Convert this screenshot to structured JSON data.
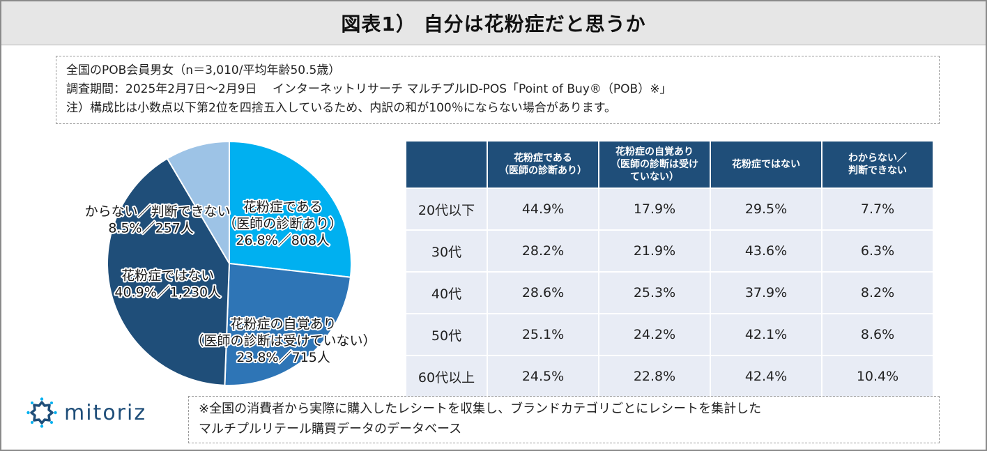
{
  "title": "図表1） 自分は花粉症だと思うか",
  "notes": [
    "全国のPOB会員男女（n＝3,010/平均年齢50.5歳）",
    "調査期間：2025年2月7日～2月9日　 インターネットリサーチ マルチプルID-POS「Point of Buy®（POB）※」",
    "注）構成比は小数点以下第2位を四捨五入しているため、内訳の和が100％にならない場合があります。"
  ],
  "chart_data": [
    {
      "type": "pie",
      "slices": [
        {
          "label_lines": [
            "花粉症である",
            "（医師の診断あり）",
            "26.8%／808人"
          ],
          "value": 26.8,
          "count": 808,
          "color": "#00b0f0"
        },
        {
          "label_lines": [
            "花粉症の自覚あり",
            "（医師の診断は受けていない）",
            "23.8%／715人"
          ],
          "value": 23.8,
          "count": 715,
          "color": "#2e75b6"
        },
        {
          "label_lines": [
            "花粉症ではない",
            "40.9%／1,230人"
          ],
          "value": 40.9,
          "count": 1230,
          "color": "#1f4e79"
        },
        {
          "label_lines": [
            "わからない／判断できない",
            "8.5%／257人"
          ],
          "value": 8.5,
          "count": 257,
          "color": "#9dc3e6"
        }
      ]
    },
    {
      "type": "table",
      "columns": [
        {
          "line1": "花粉症である",
          "line2": "（医師の診断あり）"
        },
        {
          "line1": "花粉症の自覚あり",
          "line2": "（医師の診断は受け",
          "line3": "ていない）"
        },
        {
          "line1": "花粉症ではない"
        },
        {
          "line1": "わからない／",
          "line2": "判断できない"
        }
      ],
      "rows": [
        {
          "label": "20代以下",
          "values": [
            "44.9%",
            "17.9%",
            "29.5%",
            "7.7%"
          ]
        },
        {
          "label": "30代",
          "values": [
            "28.2%",
            "21.9%",
            "43.6%",
            "6.3%"
          ]
        },
        {
          "label": "40代",
          "values": [
            "28.6%",
            "25.3%",
            "37.9%",
            "8.2%"
          ]
        },
        {
          "label": "50代",
          "values": [
            "25.1%",
            "24.2%",
            "42.1%",
            "8.6%"
          ]
        },
        {
          "label": "60代以上",
          "values": [
            "24.5%",
            "22.8%",
            "42.4%",
            "10.4%"
          ]
        }
      ]
    }
  ],
  "logo": {
    "text": "mitoriz",
    "icon": "sun-burst-icon",
    "color": "#1f4e79",
    "accent": "#00b0f0"
  },
  "footnote": [
    "※全国の消費者から実際に購入したレシートを収集し、ブランドカテゴリごとにレシートを集計した",
    "マルチプルリテール購買データのデータベース"
  ]
}
